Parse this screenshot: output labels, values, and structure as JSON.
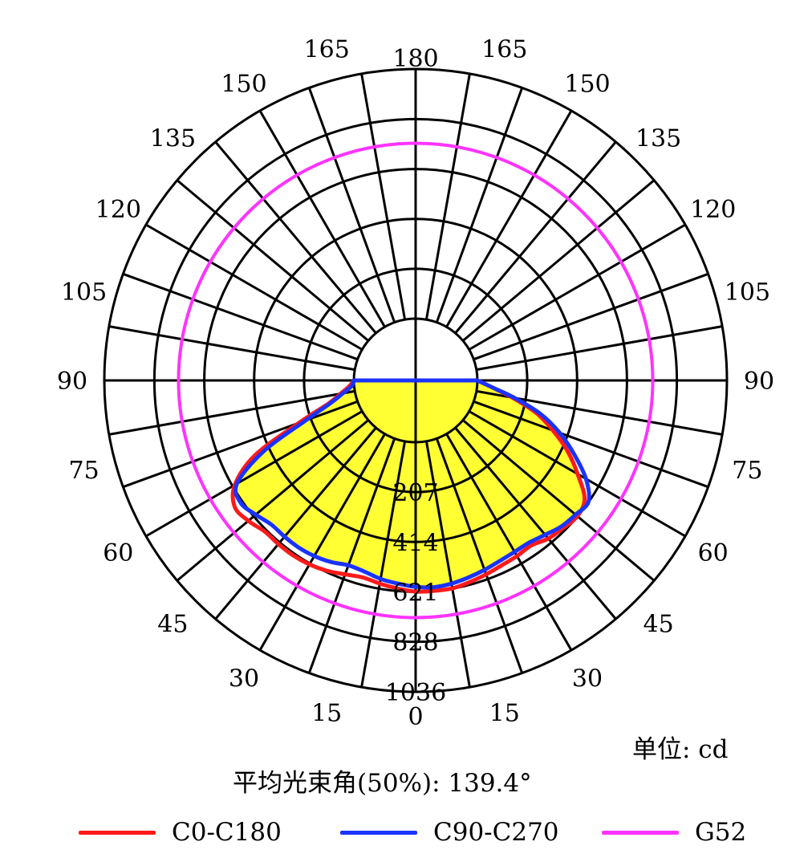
{
  "chart_data": {
    "type": "polar",
    "unit_label": "单位: cd",
    "beam_angle_label": "平均光束角(50%): 139.4°",
    "radial_ticks": [
      "207",
      "414",
      "621",
      "828",
      "1036"
    ],
    "radial_max": 1036,
    "angle_labels": {
      "left": [
        "0",
        "15",
        "30",
        "45",
        "60",
        "75",
        "90",
        "105",
        "120",
        "135",
        "150",
        "165",
        "180"
      ],
      "right": [
        "15",
        "30",
        "45",
        "60",
        "75",
        "90",
        "105",
        "120",
        "135",
        "150",
        "165"
      ]
    },
    "fill_color": "#ffff33",
    "series": [
      {
        "name": "C0-C180",
        "color": "#ff1a1a",
        "angles_deg": [
          -90,
          -85,
          -80,
          -75,
          -70,
          -65,
          -60,
          -55,
          -50,
          -45,
          -40,
          -35,
          -30,
          -25,
          -20,
          -15,
          -10,
          -5,
          0,
          5,
          10,
          15,
          20,
          25,
          30,
          35,
          40,
          45,
          50,
          55,
          60,
          65,
          70,
          75,
          80,
          85,
          90
        ],
        "intensity": [
          0,
          20,
          60,
          120,
          260,
          480,
          610,
          660,
          650,
          630,
          630,
          630,
          625,
          615,
          600,
          590,
          600,
          610,
          620,
          620,
          620,
          610,
          600,
          590,
          585,
          580,
          600,
          610,
          620,
          600,
          520,
          440,
          350,
          260,
          150,
          60,
          0
        ]
      },
      {
        "name": "C90-C270",
        "color": "#1a33ff",
        "angles_deg": [
          -90,
          -85,
          -80,
          -75,
          -70,
          -65,
          -60,
          -55,
          -50,
          -45,
          -40,
          -35,
          -30,
          -25,
          -20,
          -15,
          -10,
          -5,
          0,
          5,
          10,
          15,
          20,
          25,
          30,
          35,
          40,
          45,
          50,
          55,
          60,
          65,
          70,
          75,
          80,
          85,
          90
        ],
        "intensity": [
          0,
          10,
          50,
          110,
          230,
          440,
          600,
          630,
          610,
          590,
          590,
          590,
          585,
          575,
          560,
          565,
          580,
          590,
          600,
          605,
          600,
          590,
          580,
          570,
          565,
          565,
          580,
          600,
          610,
          620,
          560,
          470,
          380,
          280,
          160,
          60,
          0
        ]
      },
      {
        "name": "G52",
        "color": "#ff33ff",
        "angles_deg": [
          0,
          15,
          30,
          45,
          60,
          75,
          90,
          105,
          120,
          135,
          150,
          165,
          180
        ],
        "intensity": [
          728,
          728,
          728,
          728,
          728,
          728,
          728,
          728,
          728,
          728,
          728,
          728,
          728
        ]
      }
    ]
  }
}
